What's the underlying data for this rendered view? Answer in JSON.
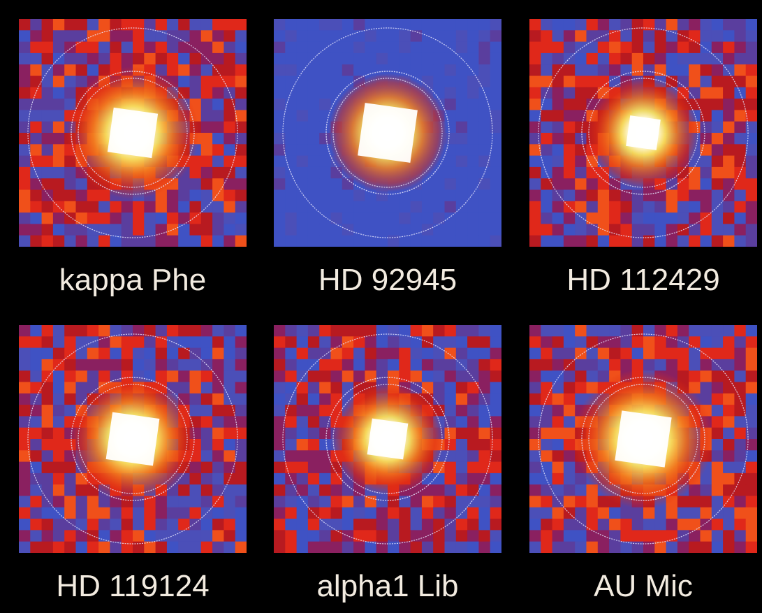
{
  "panels": [
    {
      "label": "kappa Phe"
    },
    {
      "label": "HD 92945"
    },
    {
      "label": "HD 112429"
    },
    {
      "label": "HD 119124"
    },
    {
      "label": "alpha1 Lib"
    },
    {
      "label": "AU Mic"
    }
  ]
}
